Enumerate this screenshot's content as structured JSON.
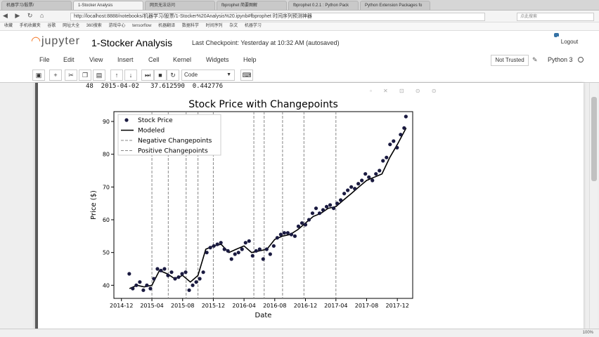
{
  "browser": {
    "tabs": [
      {
        "label": "机器学习/股票/"
      },
      {
        "label": "1-Stocker Analysis"
      },
      {
        "label": "网页无法访问"
      },
      {
        "label": "fbprophet 简要图解"
      },
      {
        "label": "fbprophet 0.2.1 : Python Pack"
      },
      {
        "label": "Python Extension Packages fo"
      }
    ],
    "url": "http://localhost:8888/notebooks/机器学习/股票/1-Stocker%20Analysis%20.ipynb#fbprophet   时间序列预测神器",
    "search_placeholder": "点此搜索",
    "bookmarks": [
      "收藏",
      "手机收藏夹",
      "谷歌",
      "网址大全",
      "360搜索",
      "游戏中心",
      "tensorflow",
      "机器翻译",
      "数据科学",
      "时间序列",
      "杂文",
      "机器学习"
    ]
  },
  "jupyter": {
    "logo_text": "jupyter",
    "notebook_title": "1-Stocker Analysis",
    "checkpoint": "Last Checkpoint: Yesterday at 10:32 AM (autosaved)",
    "logout": "Logout",
    "menu": [
      "File",
      "Edit",
      "View",
      "Insert",
      "Cell",
      "Kernel",
      "Widgets",
      "Help"
    ],
    "trust_status": "Not Trusted",
    "kernel": "Python 3",
    "cell_type": "Code"
  },
  "output": {
    "row_text": "48  2015-04-02   37.612590  0.442776"
  },
  "status_bar": {
    "left": "",
    "right": "100%"
  },
  "colors": {
    "point": "#1a1a40",
    "line": "#000000",
    "changepoint": "#888888"
  },
  "chart_data": {
    "type": "scatter",
    "title": "Stock Price with Changepoints",
    "xlabel": "Date",
    "ylabel": "Price ($)",
    "x_ticks": [
      "2014-12",
      "2015-04",
      "2015-08",
      "2015-12",
      "2016-04",
      "2016-08",
      "2016-12",
      "2017-04",
      "2017-08",
      "2017-12"
    ],
    "y_ticks": [
      40,
      50,
      60,
      70,
      80,
      90
    ],
    "xlim": [
      "2014-11-01",
      "2018-01-31"
    ],
    "ylim": [
      36,
      93
    ],
    "legend": {
      "placement": "top-left",
      "entries": [
        "Stock Price",
        "Modeled",
        "Negative Changepoints",
        "Positive Changepoints"
      ]
    },
    "changepoints": [
      "2015-04-01",
      "2015-06-05",
      "2015-08-15",
      "2015-10-01",
      "2015-12-01",
      "2016-05-10",
      "2016-06-20",
      "2016-09-01",
      "2016-11-25",
      "2017-04-01"
    ],
    "series": [
      {
        "name": "Modeled",
        "x": [
          "2015-01-02",
          "2015-02-01",
          "2015-03-01",
          "2015-04-01",
          "2015-05-01",
          "2015-06-01",
          "2015-07-01",
          "2015-08-01",
          "2015-09-01",
          "2015-10-01",
          "2015-11-01",
          "2015-12-01",
          "2016-01-01",
          "2016-02-01",
          "2016-03-01",
          "2016-04-01",
          "2016-05-01",
          "2016-06-01",
          "2016-07-01",
          "2016-08-01",
          "2016-09-01",
          "2016-10-01",
          "2016-11-01",
          "2016-12-01",
          "2017-01-01",
          "2017-02-01",
          "2017-03-01",
          "2017-04-01",
          "2017-05-01",
          "2017-06-01",
          "2017-07-01",
          "2017-08-01",
          "2017-09-01",
          "2017-10-01",
          "2017-11-01",
          "2017-12-01",
          "2018-01-05"
        ],
        "values": [
          39,
          40,
          39.5,
          40,
          44.5,
          43.5,
          42,
          43,
          41,
          43,
          51,
          52,
          52.5,
          50,
          51,
          52,
          50,
          50.5,
          51,
          54,
          55,
          55.5,
          57,
          59,
          61,
          62,
          63.5,
          64,
          66,
          68,
          70,
          72,
          73,
          74,
          79,
          83,
          88
        ]
      },
      {
        "name": "Stock Price",
        "x": [
          "2015-01-01",
          "2015-01-15",
          "2015-01-29",
          "2015-02-12",
          "2015-02-26",
          "2015-03-12",
          "2015-03-26",
          "2015-04-09",
          "2015-04-23",
          "2015-05-07",
          "2015-05-21",
          "2015-06-04",
          "2015-06-18",
          "2015-07-02",
          "2015-07-16",
          "2015-07-30",
          "2015-08-13",
          "2015-08-27",
          "2015-09-10",
          "2015-09-24",
          "2015-10-08",
          "2015-10-22",
          "2015-11-05",
          "2015-11-19",
          "2015-12-03",
          "2015-12-17",
          "2015-12-31",
          "2016-01-14",
          "2016-01-28",
          "2016-02-11",
          "2016-02-25",
          "2016-03-10",
          "2016-03-24",
          "2016-04-07",
          "2016-04-21",
          "2016-05-05",
          "2016-05-19",
          "2016-06-02",
          "2016-06-16",
          "2016-06-30",
          "2016-07-14",
          "2016-07-28",
          "2016-08-11",
          "2016-08-25",
          "2016-09-08",
          "2016-09-22",
          "2016-10-06",
          "2016-10-20",
          "2016-11-03",
          "2016-11-17",
          "2016-12-01",
          "2016-12-15",
          "2016-12-29",
          "2017-01-12",
          "2017-01-26",
          "2017-02-09",
          "2017-02-23",
          "2017-03-09",
          "2017-03-23",
          "2017-04-06",
          "2017-04-20",
          "2017-05-04",
          "2017-05-18",
          "2017-06-01",
          "2017-06-15",
          "2017-06-29",
          "2017-07-13",
          "2017-07-27",
          "2017-08-10",
          "2017-08-24",
          "2017-09-07",
          "2017-09-21",
          "2017-10-05",
          "2017-10-19",
          "2017-11-02",
          "2017-11-16",
          "2017-11-30",
          "2017-12-14",
          "2017-12-28",
          "2018-01-04"
        ],
        "values": [
          43.5,
          39,
          40,
          41,
          38.5,
          40,
          39,
          42,
          45,
          44.5,
          45,
          43,
          44,
          42,
          42.5,
          43.5,
          44,
          38.5,
          40,
          41,
          42,
          44,
          50,
          51.5,
          52,
          52.5,
          53,
          51,
          50.5,
          48,
          49.5,
          50,
          51,
          53,
          53.5,
          49,
          50.5,
          51,
          48,
          51,
          49.5,
          52,
          54.5,
          55.5,
          56,
          56,
          55.5,
          55,
          58,
          59,
          58.5,
          60,
          62,
          63.5,
          62,
          63,
          64,
          64.5,
          63.5,
          65,
          66,
          68,
          69,
          70,
          69.5,
          71,
          72,
          74,
          73,
          72,
          74,
          75,
          78,
          79,
          83,
          84,
          82,
          86,
          88,
          91.5
        ]
      }
    ]
  }
}
